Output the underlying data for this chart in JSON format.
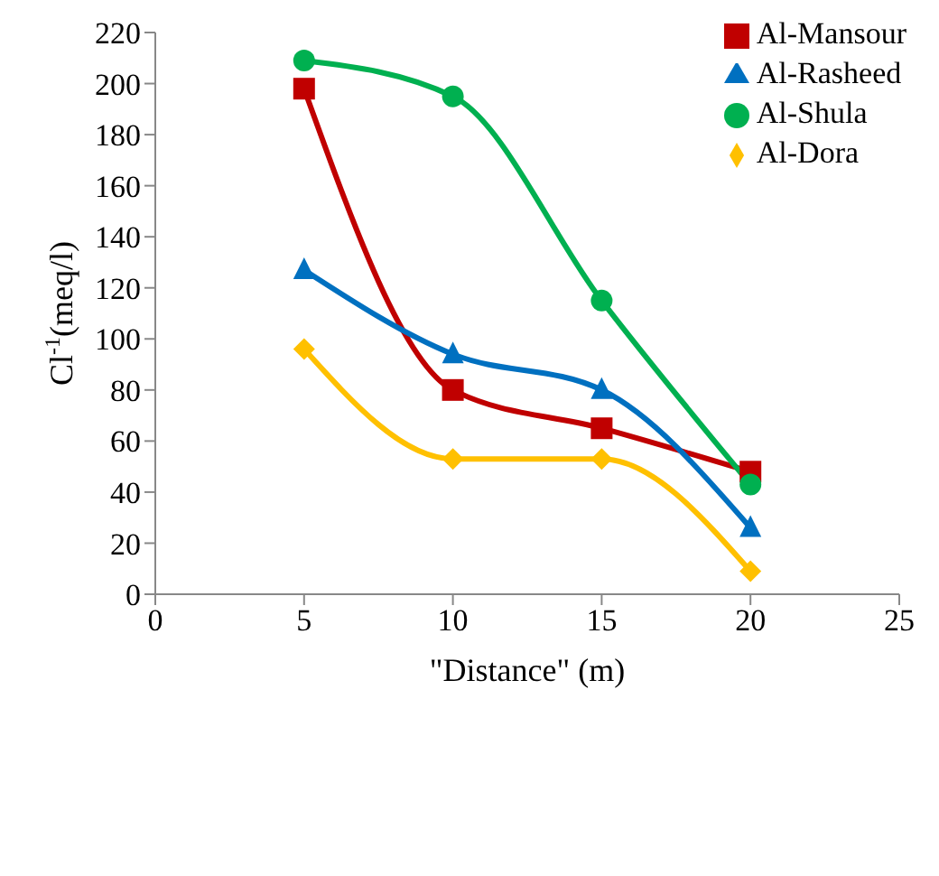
{
  "chart_data": {
    "type": "line",
    "xlabel": "\"Distance\" (m)",
    "ylabel": "Cl$^{-1}$(meq/l)",
    "x": [
      5,
      10,
      15,
      20
    ],
    "series": [
      {
        "name": "Al-Mansour",
        "color": "#c00000",
        "marker": "square",
        "values": [
          198,
          80,
          65,
          48
        ]
      },
      {
        "name": "Al-Rasheed",
        "color": "#0070c0",
        "marker": "triangle",
        "values": [
          127,
          94,
          80,
          26
        ]
      },
      {
        "name": "Al-Shula",
        "color": "#00b050",
        "marker": "circle",
        "values": [
          209,
          195,
          115,
          43
        ]
      },
      {
        "name": "Al-Dora",
        "color": "#ffc000",
        "marker": "diamond",
        "values": [
          96,
          53,
          53,
          9
        ]
      }
    ],
    "xlim": [
      0,
      25
    ],
    "xticks": [
      0,
      5,
      10,
      15,
      20,
      25
    ],
    "ylim": [
      0,
      220
    ],
    "yticks": [
      0,
      20,
      40,
      60,
      80,
      100,
      120,
      140,
      160,
      180,
      200,
      220
    ],
    "legend": "top right",
    "line_style": "solid"
  }
}
